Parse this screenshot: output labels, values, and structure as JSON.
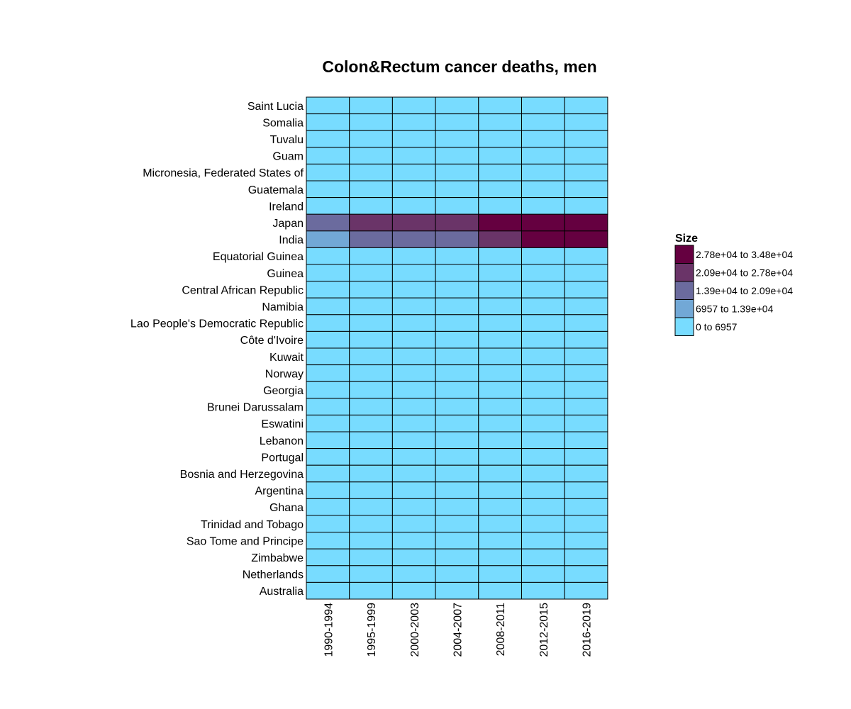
{
  "chart_data": {
    "type": "heatmap",
    "title": "Colon&Rectum cancer deaths, men",
    "xlabel": "",
    "ylabel": "",
    "x": [
      "1990-1994",
      "1995-1999",
      "2000-2003",
      "2004-2007",
      "2008-2011",
      "2012-2015",
      "2016-2019"
    ],
    "y": [
      "Saint Lucia",
      "Somalia",
      "Tuvalu",
      "Guam",
      "Micronesia, Federated States of",
      "Guatemala",
      "Ireland",
      "Japan",
      "India",
      "Equatorial Guinea",
      "Guinea",
      "Central African Republic",
      "Namibia",
      "Lao People's Democratic Republic",
      "Côte d'Ivoire",
      "Kuwait",
      "Norway",
      "Georgia",
      "Brunei Darussalam",
      "Eswatini",
      "Lebanon",
      "Portugal",
      "Bosnia and Herzegovina",
      "Argentina",
      "Ghana",
      "Trinidad and Tobago",
      "Sao Tome and Principe",
      "Zimbabwe",
      "Netherlands",
      "Australia"
    ],
    "cell_bins": [
      [
        0,
        0,
        0,
        0,
        0,
        0,
        0
      ],
      [
        0,
        0,
        0,
        0,
        0,
        0,
        0
      ],
      [
        0,
        0,
        0,
        0,
        0,
        0,
        0
      ],
      [
        0,
        0,
        0,
        0,
        0,
        0,
        0
      ],
      [
        0,
        0,
        0,
        0,
        0,
        0,
        0
      ],
      [
        0,
        0,
        0,
        0,
        0,
        0,
        0
      ],
      [
        0,
        0,
        0,
        0,
        0,
        0,
        0
      ],
      [
        2,
        3,
        3,
        3,
        4,
        4,
        4
      ],
      [
        1,
        2,
        2,
        2,
        3,
        4,
        4
      ],
      [
        0,
        0,
        0,
        0,
        0,
        0,
        0
      ],
      [
        0,
        0,
        0,
        0,
        0,
        0,
        0
      ],
      [
        0,
        0,
        0,
        0,
        0,
        0,
        0
      ],
      [
        0,
        0,
        0,
        0,
        0,
        0,
        0
      ],
      [
        0,
        0,
        0,
        0,
        0,
        0,
        0
      ],
      [
        0,
        0,
        0,
        0,
        0,
        0,
        0
      ],
      [
        0,
        0,
        0,
        0,
        0,
        0,
        0
      ],
      [
        0,
        0,
        0,
        0,
        0,
        0,
        0
      ],
      [
        0,
        0,
        0,
        0,
        0,
        0,
        0
      ],
      [
        0,
        0,
        0,
        0,
        0,
        0,
        0
      ],
      [
        0,
        0,
        0,
        0,
        0,
        0,
        0
      ],
      [
        0,
        0,
        0,
        0,
        0,
        0,
        0
      ],
      [
        0,
        0,
        0,
        0,
        0,
        0,
        0
      ],
      [
        0,
        0,
        0,
        0,
        0,
        0,
        0
      ],
      [
        0,
        0,
        0,
        0,
        0,
        0,
        0
      ],
      [
        0,
        0,
        0,
        0,
        0,
        0,
        0
      ],
      [
        0,
        0,
        0,
        0,
        0,
        0,
        0
      ],
      [
        0,
        0,
        0,
        0,
        0,
        0,
        0
      ],
      [
        0,
        0,
        0,
        0,
        0,
        0,
        0
      ],
      [
        0,
        0,
        0,
        0,
        0,
        0,
        0
      ],
      [
        0,
        0,
        0,
        0,
        0,
        0,
        0
      ]
    ],
    "legend": {
      "title": "Size",
      "placement": "right",
      "bins": [
        {
          "label": "0 to 6957",
          "color": "#78dcff"
        },
        {
          "label": "6957 to 1.39e+04",
          "color": "#72a8d6"
        },
        {
          "label": "1.39e+04 to 2.09e+04",
          "color": "#6b6b9e"
        },
        {
          "label": "2.09e+04 to 2.78e+04",
          "color": "#6a3468"
        },
        {
          "label": "2.78e+04 to 3.48e+04",
          "color": "#650040"
        }
      ]
    },
    "cell_border_color": "#000000"
  }
}
